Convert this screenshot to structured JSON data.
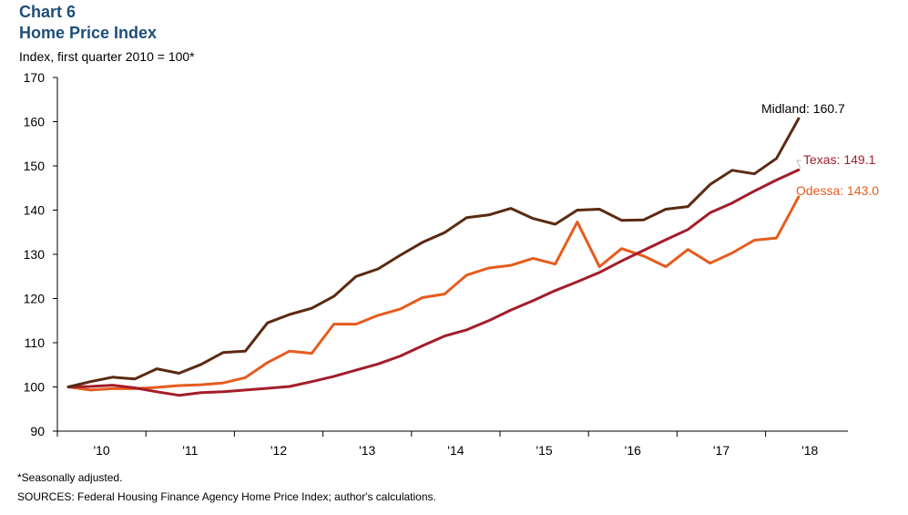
{
  "header": {
    "chart_number": "Chart 6",
    "title": "Home Price Index",
    "subtitle": "Index, first quarter 2010 = 100*"
  },
  "footnotes": {
    "note": "*Seasonally adjusted.",
    "sources": "SOURCES: Federal Housing Finance Agency Home Price Index; author's calculations."
  },
  "chart_data": {
    "type": "line",
    "title": "Home Price Index",
    "ylabel": "Index, first quarter 2010 = 100*",
    "xlabel": "",
    "ylim": [
      90,
      170
    ],
    "yticks": [
      90,
      100,
      110,
      120,
      130,
      140,
      150,
      160,
      170
    ],
    "x_tick_labels": [
      "'10",
      "'11",
      "'12",
      "'13",
      "'14",
      "'15",
      "'16",
      "'17",
      "'18"
    ],
    "quarters_per_year": 4,
    "start": "2010 Q1",
    "series": [
      {
        "name": "Midland",
        "end_label": "Midland: 160.7",
        "color": "#5a2a12",
        "values": [
          100,
          101.2,
          102.2,
          101.8,
          104.1,
          103.1,
          105.1,
          107.8,
          108.1,
          114.5,
          116.4,
          117.8,
          120.5,
          125,
          126.7,
          129.8,
          132.7,
          134.9,
          138.3,
          138.9,
          140.4,
          138.1,
          136.8,
          140,
          140.2,
          137.7,
          137.8,
          140.2,
          140.8,
          145.8,
          149,
          148.2,
          151.7,
          160.7
        ]
      },
      {
        "name": "Texas",
        "end_label": "Texas: 149.1",
        "color": "#a31d2a",
        "values": [
          100,
          100.1,
          100.4,
          99.8,
          98.9,
          98.1,
          98.7,
          98.9,
          99.3,
          99.7,
          100.1,
          101.2,
          102.4,
          103.8,
          105.2,
          107,
          109.3,
          111.5,
          112.9,
          115,
          117.4,
          119.5,
          121.8,
          123.8,
          125.9,
          128.5,
          130.9,
          133.3,
          135.6,
          139.4,
          141.6,
          144.3,
          146.8,
          149.1
        ]
      },
      {
        "name": "Odessa",
        "end_label": "Odessa: 143.0",
        "color": "#e65c1e",
        "values": [
          100,
          99.3,
          99.6,
          99.6,
          99.9,
          100.3,
          100.5,
          100.9,
          102.1,
          105.5,
          108.1,
          107.6,
          114.2,
          114.2,
          116.2,
          117.6,
          120.2,
          121,
          125.3,
          126.9,
          127.5,
          129.1,
          127.8,
          137.3,
          127.2,
          131.3,
          129.6,
          127.2,
          131.1,
          128,
          130.3,
          133.2,
          133.7,
          143
        ]
      }
    ]
  }
}
